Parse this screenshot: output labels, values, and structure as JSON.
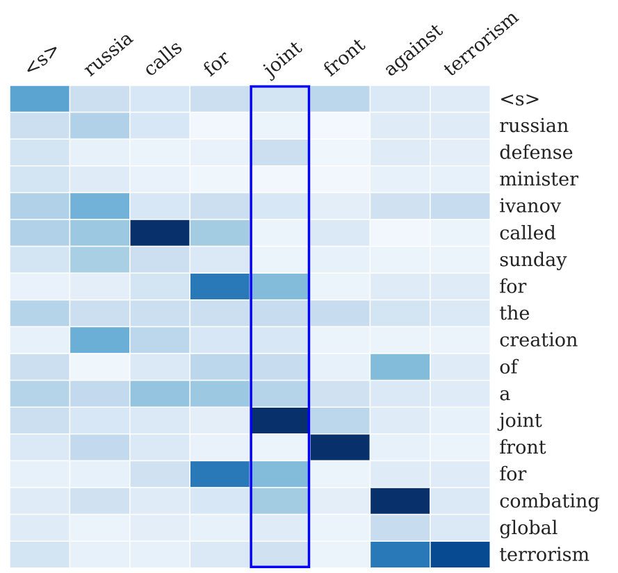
{
  "chart_data": {
    "type": "heatmap",
    "title": "",
    "x_labels": [
      "<s>",
      "russia",
      "calls",
      "for",
      "joint",
      "front",
      "against",
      "terrorism"
    ],
    "y_labels": [
      "<s>",
      "russian",
      "defense",
      "minister",
      "ivanov",
      "called",
      "sunday",
      "for",
      "the",
      "creation",
      "of",
      "a",
      "joint",
      "front",
      "for",
      "combating",
      "global",
      "terrorism"
    ],
    "values": [
      [
        0.55,
        0.22,
        0.16,
        0.22,
        0.18,
        0.28,
        0.14,
        0.12
      ],
      [
        0.22,
        0.32,
        0.16,
        0.03,
        0.06,
        0.02,
        0.12,
        0.12
      ],
      [
        0.18,
        0.08,
        0.06,
        0.07,
        0.22,
        0.04,
        0.12,
        0.1
      ],
      [
        0.18,
        0.12,
        0.07,
        0.04,
        0.03,
        0.03,
        0.08,
        0.08
      ],
      [
        0.32,
        0.48,
        0.16,
        0.22,
        0.16,
        0.1,
        0.2,
        0.24
      ],
      [
        0.32,
        0.38,
        1.0,
        0.36,
        0.06,
        0.14,
        0.03,
        0.06
      ],
      [
        0.18,
        0.34,
        0.22,
        0.14,
        0.06,
        0.08,
        0.06,
        0.06
      ],
      [
        0.07,
        0.1,
        0.18,
        0.72,
        0.44,
        0.06,
        0.12,
        0.12
      ],
      [
        0.3,
        0.22,
        0.22,
        0.22,
        0.24,
        0.24,
        0.18,
        0.14
      ],
      [
        0.08,
        0.5,
        0.28,
        0.16,
        0.16,
        0.06,
        0.06,
        0.06
      ],
      [
        0.22,
        0.04,
        0.14,
        0.28,
        0.24,
        0.08,
        0.44,
        0.12
      ],
      [
        0.3,
        0.26,
        0.4,
        0.38,
        0.3,
        0.2,
        0.14,
        0.12
      ],
      [
        0.22,
        0.16,
        0.14,
        0.1,
        1.0,
        0.28,
        0.12,
        0.08
      ],
      [
        0.14,
        0.26,
        0.14,
        0.07,
        0.06,
        1.0,
        0.08,
        0.06
      ],
      [
        0.08,
        0.08,
        0.2,
        0.72,
        0.44,
        0.06,
        0.12,
        0.12
      ],
      [
        0.12,
        0.2,
        0.12,
        0.16,
        0.36,
        0.1,
        1.0,
        0.14
      ],
      [
        0.12,
        0.06,
        0.1,
        0.08,
        0.12,
        0.06,
        0.24,
        0.14
      ],
      [
        0.18,
        0.08,
        0.08,
        0.14,
        0.2,
        0.06,
        0.72,
        0.9
      ]
    ],
    "colormap": "Blues",
    "highlight": {
      "column": "joint",
      "color": "#0000ff"
    },
    "grid": true
  }
}
